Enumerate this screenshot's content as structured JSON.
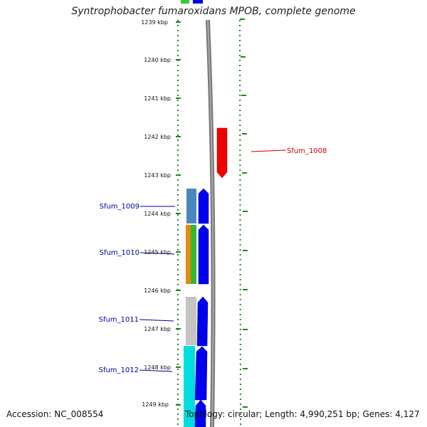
{
  "title": "Syntrophobacter fumaroxidans MPOB, complete genome",
  "footer": {
    "accession": "Accession: NC_008554",
    "summary": "Topology: circular; Length: 4,990,251 bp; Genes: 4,127"
  },
  "ruler": {
    "unit": "kbp",
    "top_partial_label": "1239 kbp",
    "labels": [
      "1240 kbp",
      "1241 kbp",
      "1242 kbp",
      "1243 kbp",
      "1244 kbp",
      "1245 kbp",
      "1246 kbp",
      "1247 kbp",
      "1248 kbp",
      "1249 kbp"
    ]
  },
  "genes": [
    {
      "id": "Sfum_1008",
      "label": "Sfum_1008",
      "strand": "reverse",
      "color": "#cc0000"
    },
    {
      "id": "Sfum_1009",
      "label": "Sfum_1009",
      "strand": "forward",
      "color": "#000099"
    },
    {
      "id": "Sfum_1010",
      "label": "Sfum_1010",
      "strand": "forward",
      "color": "#000099"
    },
    {
      "id": "Sfum_1011",
      "label": "Sfum_1011",
      "strand": "forward",
      "color": "#000099"
    },
    {
      "id": "Sfum_1012",
      "label": "Sfum_1012",
      "strand": "forward",
      "color": "#000099"
    }
  ],
  "colors": {
    "forward_gene": "#0000ee",
    "reverse_gene": "#ff0000",
    "backbone": "#888888",
    "ticks": "#1a8a1a"
  }
}
